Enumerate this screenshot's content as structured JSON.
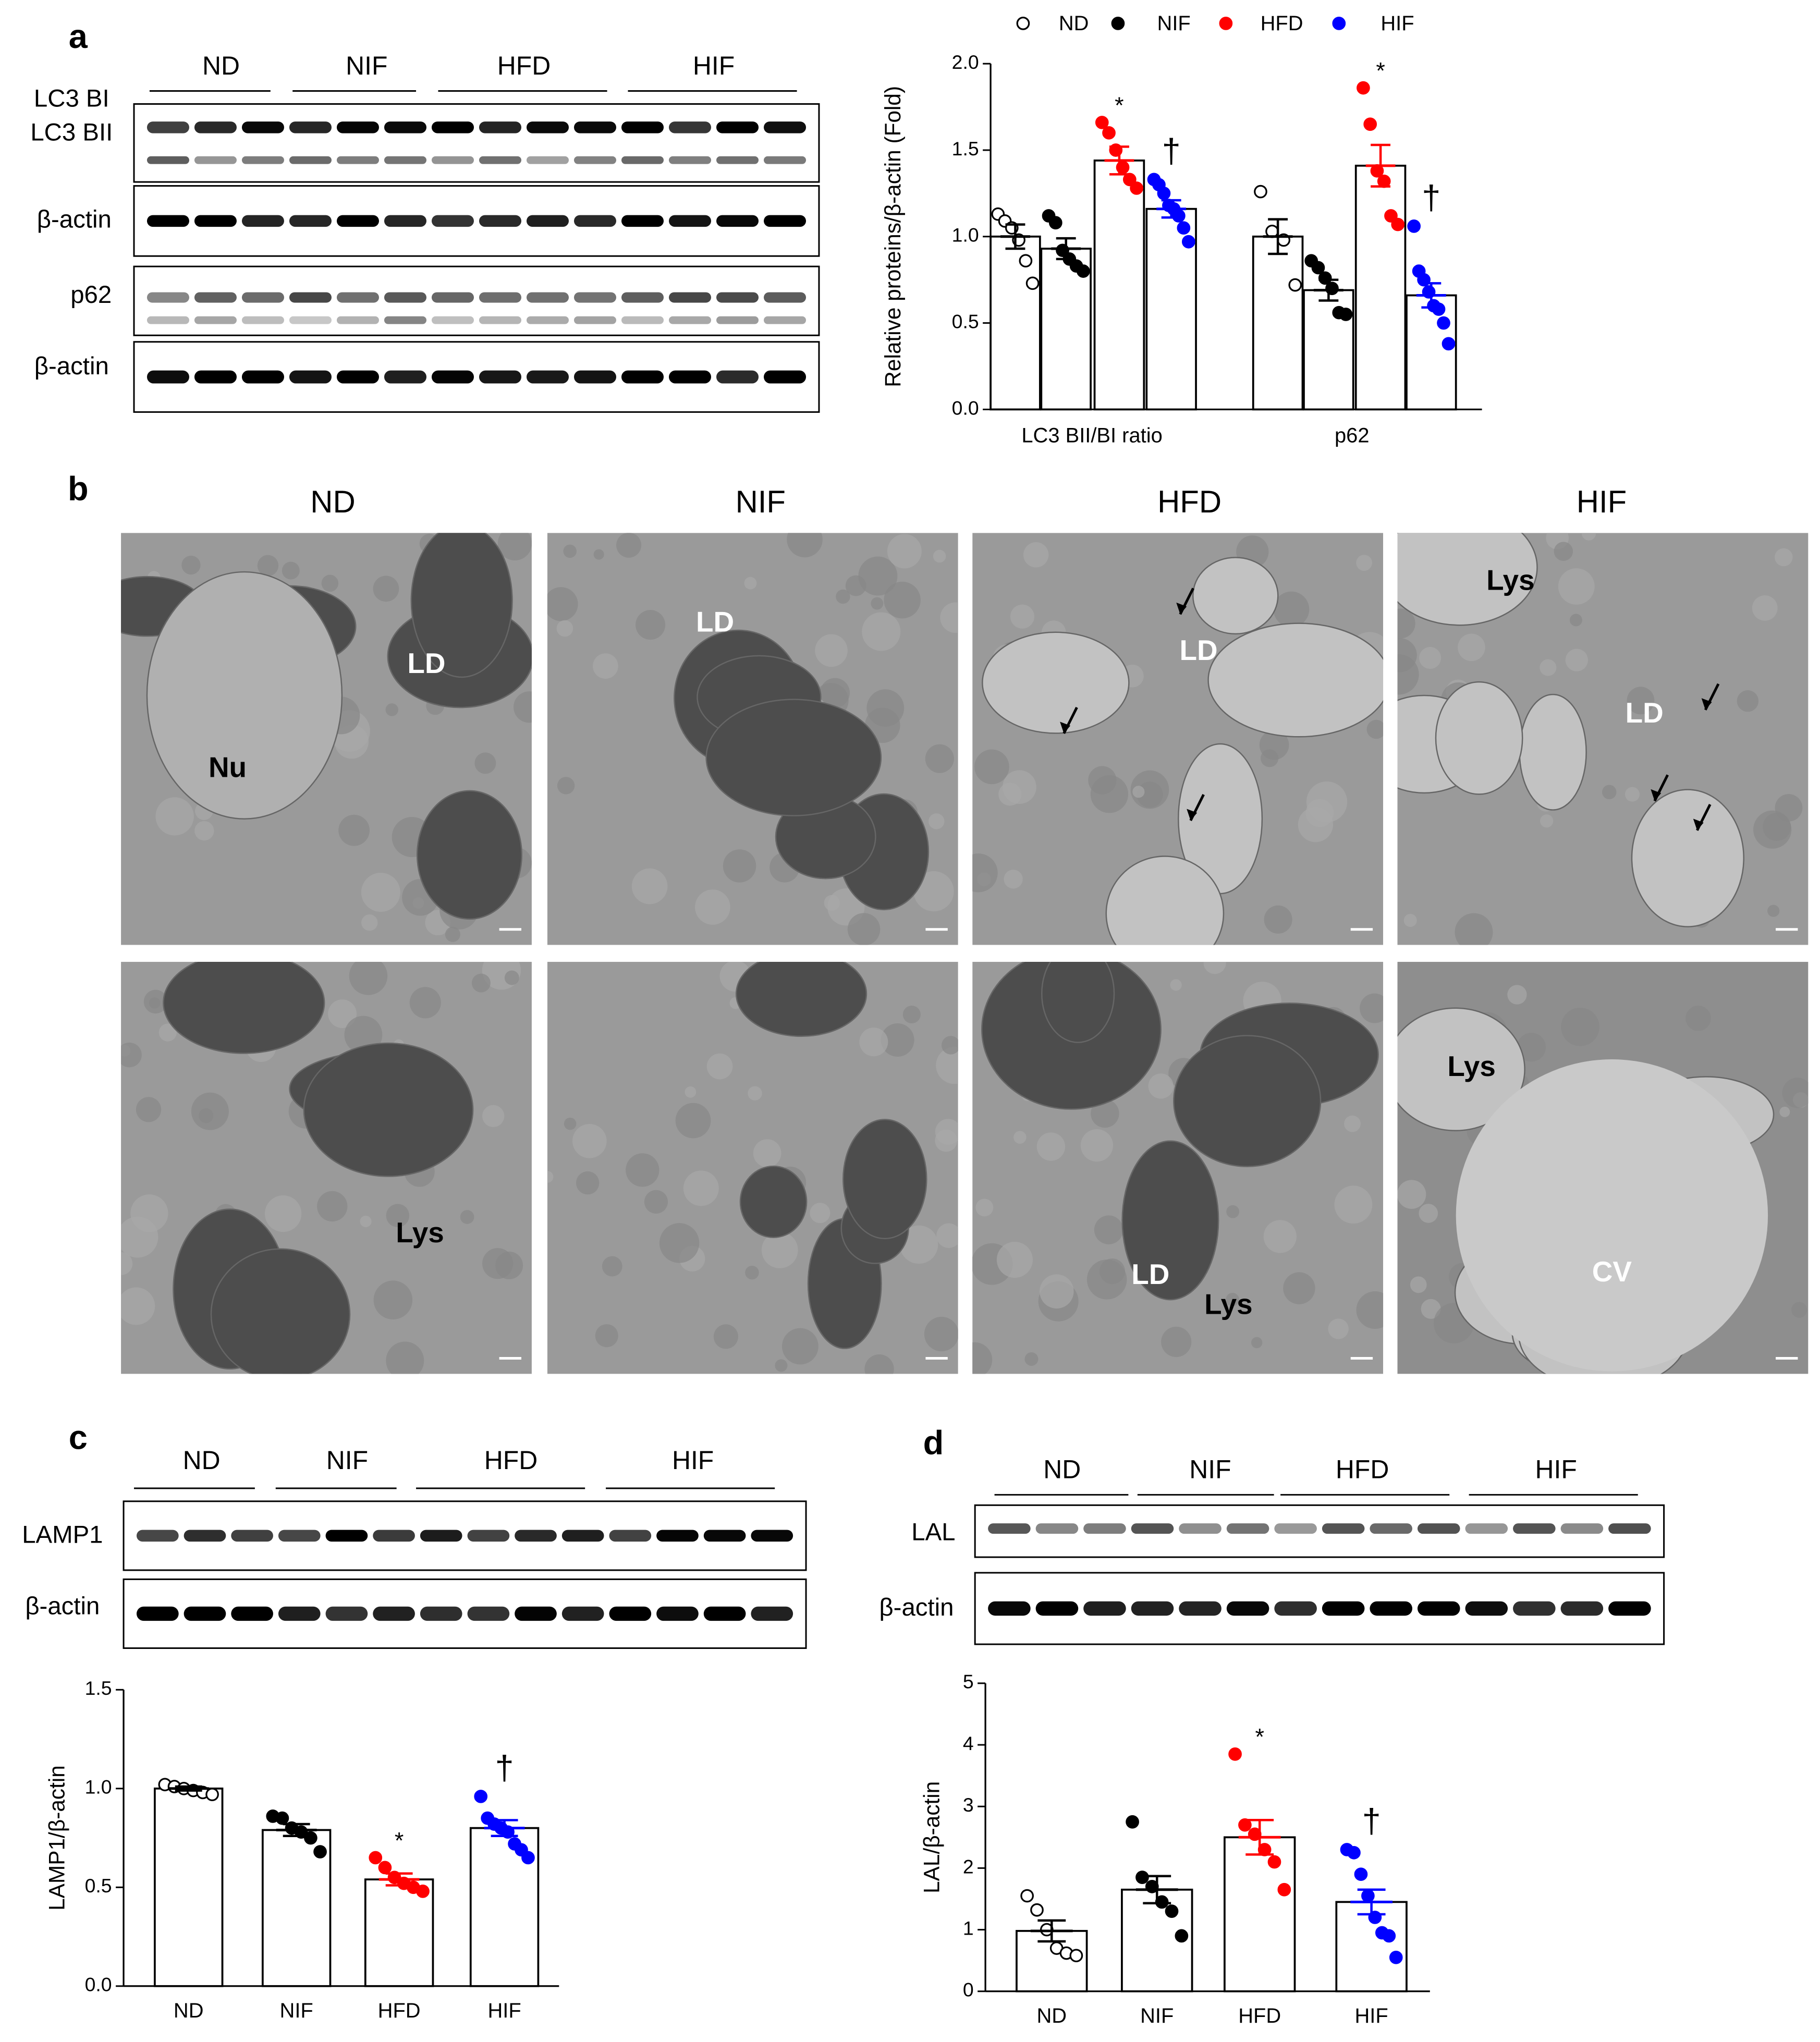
{
  "panel_labels": [
    "a",
    "b",
    "c",
    "d"
  ],
  "blots": {
    "a": {
      "groups": [
        "ND",
        "NIF",
        "HFD",
        "HIF"
      ],
      "rows": [
        "LC3 BI",
        "LC3 BII",
        "β-actin",
        "p62",
        "β-actin"
      ]
    },
    "c": {
      "groups": [
        "ND",
        "NIF",
        "HFD",
        "HIF"
      ],
      "rows": [
        "LAMP1",
        "β-actin"
      ]
    },
    "d": {
      "groups": [
        "ND",
        "NIF",
        "HFD",
        "HIF"
      ],
      "rows": [
        "LAL",
        "β-actin"
      ]
    }
  },
  "micrographs": {
    "columns": [
      "ND",
      "NIF",
      "HFD",
      "HIF"
    ],
    "rows": [
      [
        [
          "LD",
          "Nu"
        ],
        [
          "LD"
        ],
        [
          "LD"
        ],
        [
          "Lys",
          "LD"
        ]
      ],
      [
        [
          "Lys"
        ],
        [],
        [
          "LD",
          "Lys"
        ],
        [
          "Lys",
          "CV"
        ]
      ]
    ]
  },
  "chart_data": [
    {
      "type": "bar",
      "ylabel": "Relative proteins/β-actin (Fold)",
      "categories": [
        "LC3 BII/BI ratio",
        "p62"
      ],
      "series": [
        {
          "name": "ND",
          "color": "#ffffff",
          "values": [
            1.0,
            1.0
          ],
          "errors": [
            0.07,
            0.1
          ],
          "points": [
            [
              1.13,
              1.09,
              1.05,
              0.98,
              0.86,
              0.73
            ],
            [
              1.26,
              1.03,
              0.98,
              0.72
            ]
          ],
          "annotations": [
            null,
            null
          ]
        },
        {
          "name": "NIF",
          "color": "#000000",
          "values": [
            0.93,
            0.69
          ],
          "errors": [
            0.06,
            0.06
          ],
          "points": [
            [
              1.12,
              1.08,
              0.92,
              0.87,
              0.83,
              0.8
            ],
            [
              0.86,
              0.82,
              0.76,
              0.7,
              0.56,
              0.55
            ]
          ],
          "annotations": [
            null,
            null
          ]
        },
        {
          "name": "HFD",
          "color": "#ff0000",
          "values": [
            1.44,
            1.41
          ],
          "errors": [
            0.08,
            0.12
          ],
          "points": [
            [
              1.66,
              1.6,
              1.5,
              1.4,
              1.33,
              1.28
            ],
            [
              1.86,
              1.65,
              1.38,
              1.32,
              1.12,
              1.07
            ]
          ],
          "annotations": [
            "*",
            "*"
          ]
        },
        {
          "name": "HIF",
          "color": "#0000ff",
          "values": [
            1.16,
            0.66
          ],
          "errors": [
            0.05,
            0.07
          ],
          "points": [
            [
              1.33,
              1.3,
              1.25,
              1.18,
              1.16,
              1.12,
              1.05,
              0.97
            ],
            [
              1.06,
              0.8,
              0.75,
              0.68,
              0.6,
              0.58,
              0.5,
              0.38
            ]
          ],
          "annotations": [
            "†",
            "†"
          ]
        }
      ],
      "ylim": [
        0,
        2
      ],
      "yticks": [
        {
          "value": 0,
          "label": "0.0"
        },
        0.5,
        {
          "value": 1,
          "label": "1.0"
        },
        1.5,
        {
          "value": 2,
          "label": "2.0"
        }
      ]
    },
    {
      "type": "bar",
      "ylabel": "LAMP1/β-actin",
      "categories": [
        "ND",
        "NIF",
        "HFD",
        "HIF"
      ],
      "colors": [
        "#ffffff",
        "#000000",
        "#ff0000",
        "#0000ff"
      ],
      "values": [
        1.0,
        0.79,
        0.54,
        0.8
      ],
      "errors": [
        0.01,
        0.03,
        0.03,
        0.04
      ],
      "points": [
        [
          1.02,
          1.01,
          1.0,
          0.99,
          0.98,
          0.97
        ],
        [
          0.86,
          0.85,
          0.8,
          0.78,
          0.75,
          0.68
        ],
        [
          0.65,
          0.6,
          0.55,
          0.52,
          0.5,
          0.48
        ],
        [
          0.96,
          0.85,
          0.82,
          0.8,
          0.78,
          0.72,
          0.69,
          0.65
        ]
      ],
      "annotations": [
        null,
        null,
        "*",
        "†"
      ],
      "ylim": [
        0,
        1.5
      ],
      "yticks": [
        {
          "value": 0,
          "label": "0.0"
        },
        0.5,
        {
          "value": 1,
          "label": "1.0"
        },
        1.5
      ]
    },
    {
      "type": "bar",
      "ylabel": "LAL/β-actin",
      "categories": [
        "ND",
        "NIF",
        "HFD",
        "HIF"
      ],
      "colors": [
        "#ffffff",
        "#000000",
        "#ff0000",
        "#0000ff"
      ],
      "values": [
        0.98,
        1.65,
        2.5,
        1.45
      ],
      "errors": [
        0.17,
        0.22,
        0.28,
        0.2
      ],
      "points": [
        [
          1.55,
          1.32,
          1.0,
          0.7,
          0.62,
          0.58
        ],
        [
          2.75,
          1.85,
          1.7,
          1.45,
          1.3,
          0.9
        ],
        [
          3.85,
          2.7,
          2.55,
          2.3,
          2.1,
          1.65
        ],
        [
          2.3,
          2.25,
          1.9,
          1.55,
          1.2,
          0.95,
          0.9,
          0.55
        ]
      ],
      "annotations": [
        null,
        null,
        "*",
        "†"
      ],
      "ylim": [
        0,
        5
      ],
      "yticks": [
        0,
        1,
        2,
        3,
        4,
        5
      ]
    }
  ]
}
